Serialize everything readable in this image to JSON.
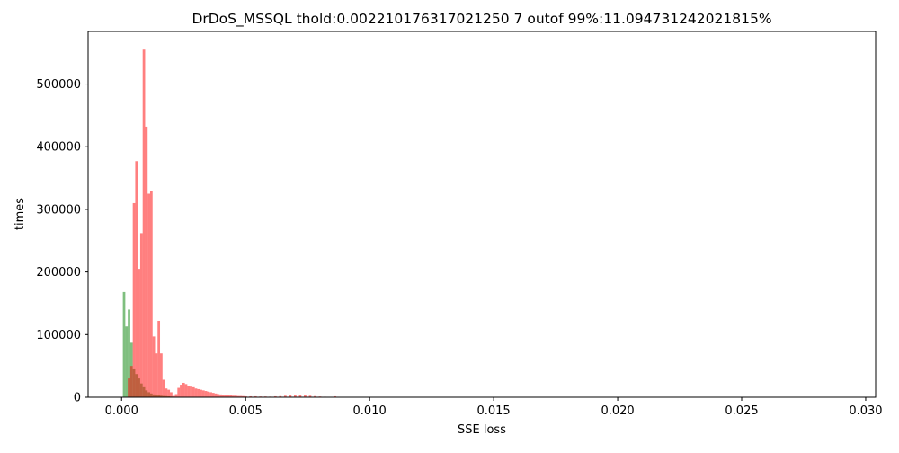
{
  "chart_data": {
    "type": "bar",
    "title": "DrDoS_MSSQL thold:0.002210176317021250 7 outof 99%:11.094731242021815%",
    "xlabel": "SSE loss",
    "ylabel": "times",
    "xlim": [
      -0.00135,
      0.0304
    ],
    "ylim": [
      0,
      584000
    ],
    "x_ticks": [
      0.0,
      0.005,
      0.01,
      0.015,
      0.02,
      0.025,
      0.03
    ],
    "x_tick_labels": [
      "0.000",
      "0.005",
      "0.010",
      "0.015",
      "0.020",
      "0.025",
      "0.030"
    ],
    "y_ticks": [
      0,
      100000,
      200000,
      300000,
      400000,
      500000
    ],
    "y_tick_labels": [
      "0",
      "100000",
      "200000",
      "300000",
      "400000",
      "500000"
    ],
    "grid": false,
    "series": [
      {
        "color": "#008000",
        "opacity": 0.5,
        "bin_width": 0.0001,
        "x": [
          0.0001,
          0.0002,
          0.0003,
          0.0004,
          0.0005,
          0.0006,
          0.0007,
          0.0008,
          0.0009,
          0.001,
          0.0011,
          0.0012,
          0.0013,
          0.0014,
          0.0015,
          0.0016,
          0.0017,
          0.0018,
          0.0019,
          0.002
        ],
        "values": [
          168000,
          113000,
          140000,
          87000,
          46000,
          37000,
          30000,
          22000,
          16000,
          11000,
          8000,
          6000,
          4500,
          3500,
          3000,
          2500,
          2000,
          1800,
          1500,
          1000
        ]
      },
      {
        "color": "#ff0000",
        "opacity": 0.5,
        "bin_width": 0.0001,
        "x": [
          0.0003,
          0.0004,
          0.0005,
          0.0006,
          0.0007,
          0.0008,
          0.0009,
          0.001,
          0.0011,
          0.0012,
          0.0013,
          0.0014,
          0.0015,
          0.0016,
          0.0017,
          0.0018,
          0.0019,
          0.002,
          0.0021,
          0.0022,
          0.0023,
          0.0024,
          0.0025,
          0.0026,
          0.0027,
          0.0028,
          0.0029,
          0.003,
          0.0031,
          0.0032,
          0.0033,
          0.0034,
          0.0035,
          0.0036,
          0.0037,
          0.0038,
          0.0039,
          0.004,
          0.0041,
          0.0042,
          0.0043,
          0.0044,
          0.0045,
          0.0046,
          0.0047,
          0.0048,
          0.0049,
          0.005,
          0.0052,
          0.0054,
          0.0056,
          0.0058,
          0.006,
          0.0062,
          0.0064,
          0.0066,
          0.0068,
          0.007,
          0.0072,
          0.0074,
          0.0076,
          0.0078,
          0.008,
          0.0082,
          0.0086,
          0.009
        ],
        "values": [
          30000,
          50000,
          310000,
          377000,
          205000,
          262000,
          555000,
          432000,
          325000,
          330000,
          97000,
          70000,
          122000,
          70000,
          28000,
          14000,
          12000,
          8000,
          2000,
          5000,
          15000,
          20000,
          23000,
          21000,
          18000,
          17000,
          16000,
          14000,
          13000,
          12000,
          11000,
          10000,
          9000,
          8000,
          7000,
          6000,
          5000,
          4500,
          4000,
          3500,
          3000,
          3000,
          2500,
          2500,
          2000,
          2000,
          1800,
          1500,
          1500,
          1500,
          1200,
          1200,
          1000,
          1500,
          1800,
          2500,
          3500,
          4000,
          3500,
          3000,
          2500,
          1800,
          1200,
          800,
          1500,
          500
        ]
      }
    ]
  }
}
